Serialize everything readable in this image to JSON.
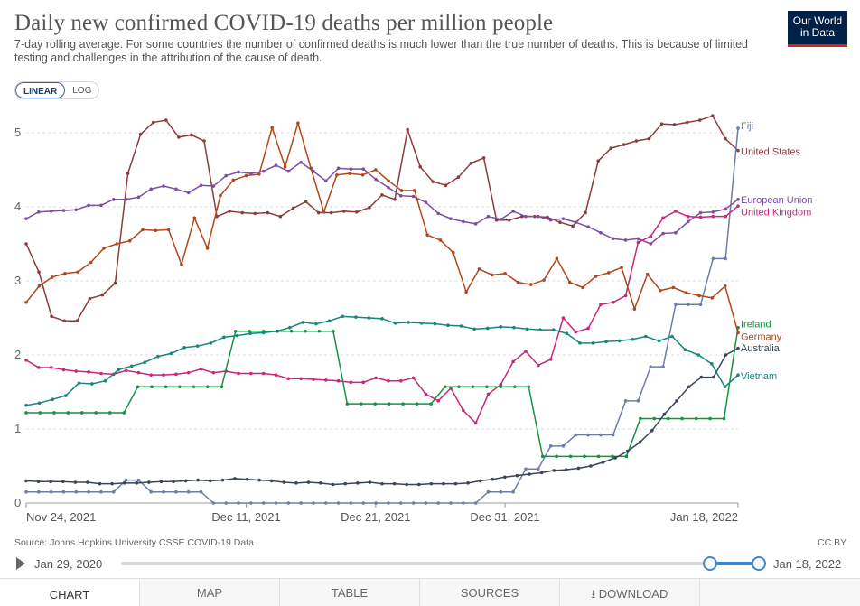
{
  "header": {
    "title": "Daily new confirmed COVID-19 deaths per million people",
    "subtitle": "7-day rolling average. For some countries the number of confirmed deaths is much lower than the true number of deaths. This is because of limited testing and challenges in the attribution of the cause of death.",
    "logo_line1": "Our World",
    "logo_line2": "in Data"
  },
  "scale_toggle": {
    "linear_label": "LINEAR",
    "log_label": "LOG",
    "selected": "LINEAR"
  },
  "chart_data": {
    "type": "line",
    "x_type": "date",
    "x_range": [
      "2021-11-24",
      "2022-01-18"
    ],
    "x_ticks": [
      {
        "date": "2021-11-24",
        "label": "Nov 24, 2021"
      },
      {
        "date": "2021-12-11",
        "label": "Dec 11, 2021"
      },
      {
        "date": "2021-12-21",
        "label": "Dec 21, 2021"
      },
      {
        "date": "2021-12-31",
        "label": "Dec 31, 2021"
      },
      {
        "date": "2022-01-18",
        "label": "Jan 18, 2022"
      }
    ],
    "ylim": [
      0,
      5
    ],
    "y_ticks": [
      0,
      1,
      2,
      3,
      4,
      5
    ],
    "grid": "horizontal dashed",
    "legend": "right, inline labels",
    "start_date": "2021-11-24",
    "series": [
      {
        "name": "United States",
        "color": "#8c3b3b",
        "values": [
          3.5,
          3.12,
          2.52,
          2.46,
          2.46,
          2.76,
          2.81,
          2.97,
          4.45,
          4.98,
          5.14,
          5.17,
          4.94,
          4.97,
          4.89,
          3.87,
          3.94,
          3.92,
          3.91,
          3.92,
          3.87,
          3.98,
          4.07,
          3.92,
          3.92,
          3.94,
          3.93,
          3.99,
          4.16,
          4.1,
          5.04,
          4.54,
          4.34,
          4.29,
          4.4,
          4.59,
          4.66,
          3.82,
          3.82,
          3.87,
          3.87,
          3.86,
          3.79,
          3.74,
          3.92,
          4.62,
          4.79,
          4.84,
          4.89,
          4.92,
          5.12,
          5.11,
          5.14,
          5.17,
          5.23,
          4.92,
          4.76
        ]
      },
      {
        "name": "Fiji",
        "color": "#6d7ea6",
        "values": [
          0.15,
          0.15,
          0.15,
          0.15,
          0.15,
          0.15,
          0.15,
          0.15,
          0.31,
          0.31,
          0.15,
          0.15,
          0.15,
          0.15,
          0.15,
          0,
          0,
          0,
          0,
          0,
          0,
          0,
          0,
          0,
          0,
          0,
          0,
          0,
          0,
          0,
          0,
          0,
          0,
          0,
          0,
          0,
          0,
          0.15,
          0.15,
          0.15,
          0.46,
          0.46,
          0.77,
          0.77,
          0.92,
          0.92,
          0.92,
          0.92,
          1.38,
          1.38,
          1.84,
          1.84,
          2.68,
          2.68,
          2.68,
          3.3,
          3.3,
          5.06
        ]
      },
      {
        "name": "European Union",
        "color": "#7b4ea3",
        "values": [
          3.84,
          3.93,
          3.94,
          3.95,
          3.96,
          4.02,
          4.02,
          4.1,
          4.1,
          4.13,
          4.24,
          4.28,
          4.24,
          4.19,
          4.29,
          4.28,
          4.42,
          4.47,
          4.45,
          4.48,
          4.56,
          4.48,
          4.6,
          4.48,
          4.35,
          4.52,
          4.51,
          4.51,
          4.37,
          4.26,
          4.15,
          4.14,
          4.06,
          3.91,
          3.84,
          3.8,
          3.77,
          3.87,
          3.83,
          3.94,
          3.87,
          3.87,
          3.82,
          3.84,
          3.79,
          3.73,
          3.65,
          3.57,
          3.55,
          3.57,
          3.5,
          3.64,
          3.65,
          3.8,
          3.92,
          3.93,
          3.97,
          4.1
        ]
      },
      {
        "name": "United Kingdom",
        "color": "#c7287a",
        "values": [
          1.93,
          1.83,
          1.83,
          1.8,
          1.78,
          1.77,
          1.75,
          1.74,
          1.79,
          1.76,
          1.73,
          1.73,
          1.74,
          1.76,
          1.81,
          1.76,
          1.78,
          1.75,
          1.75,
          1.75,
          1.73,
          1.68,
          1.68,
          1.67,
          1.66,
          1.65,
          1.63,
          1.63,
          1.69,
          1.65,
          1.65,
          1.69,
          1.47,
          1.38,
          1.55,
          1.25,
          1.08,
          1.47,
          1.6,
          1.91,
          2.05,
          1.86,
          1.94,
          2.5,
          2.31,
          2.36,
          2.68,
          2.71,
          2.8,
          3.52,
          3.6,
          3.85,
          3.94,
          3.87,
          3.86,
          3.87,
          3.87,
          4.01
        ]
      },
      {
        "name": "Ireland",
        "color": "#199143",
        "values": [
          1.22,
          1.22,
          1.22,
          1.22,
          1.22,
          1.22,
          1.22,
          1.22,
          1.57,
          1.57,
          1.57,
          1.57,
          1.57,
          1.57,
          1.57,
          2.32,
          2.32,
          2.32,
          2.32,
          2.32,
          2.32,
          2.32,
          2.32,
          1.34,
          1.34,
          1.34,
          1.34,
          1.34,
          1.34,
          1.34,
          1.57,
          1.57,
          1.57,
          1.57,
          1.57,
          1.57,
          1.57,
          0.63,
          0.63,
          0.63,
          0.63,
          0.63,
          0.63,
          0.63,
          1.14,
          1.14,
          1.14,
          1.14,
          1.14,
          1.14,
          1.14,
          2.37
        ]
      },
      {
        "name": "Germany",
        "color": "#b3471c",
        "values": [
          2.71,
          2.93,
          3.05,
          3.1,
          3.12,
          3.25,
          3.44,
          3.5,
          3.54,
          3.69,
          3.68,
          3.69,
          3.22,
          3.85,
          3.44,
          4.15,
          4.36,
          4.42,
          4.44,
          5.07,
          4.54,
          5.13,
          4.52,
          3.93,
          4.43,
          4.45,
          4.43,
          4.5,
          4.35,
          4.22,
          4.22,
          3.62,
          3.55,
          3.38,
          2.85,
          3.16,
          3.08,
          3.1,
          2.98,
          2.95,
          3.01,
          3.3,
          2.98,
          2.91,
          3.06,
          3.11,
          3.18,
          2.62,
          3.09,
          2.87,
          2.91,
          2.84,
          2.8,
          2.77,
          2.93,
          2.3
        ]
      },
      {
        "name": "Australia",
        "color": "#3a4558",
        "values": [
          0.3,
          0.29,
          0.29,
          0.29,
          0.28,
          0.28,
          0.26,
          0.26,
          0.27,
          0.27,
          0.28,
          0.29,
          0.29,
          0.3,
          0.31,
          0.3,
          0.31,
          0.33,
          0.32,
          0.31,
          0.3,
          0.28,
          0.27,
          0.28,
          0.27,
          0.25,
          0.26,
          0.27,
          0.28,
          0.26,
          0.26,
          0.25,
          0.25,
          0.26,
          0.26,
          0.26,
          0.27,
          0.3,
          0.32,
          0.35,
          0.37,
          0.39,
          0.41,
          0.44,
          0.45,
          0.47,
          0.5,
          0.55,
          0.61,
          0.7,
          0.82,
          0.98,
          1.2,
          1.38,
          1.57,
          1.7,
          1.7,
          2.0,
          2.09
        ]
      },
      {
        "name": "Vietnam",
        "color": "#17867b",
        "values": [
          1.32,
          1.35,
          1.4,
          1.45,
          1.62,
          1.61,
          1.65,
          1.8,
          1.85,
          1.9,
          1.98,
          2.02,
          2.1,
          2.12,
          2.16,
          2.24,
          2.26,
          2.29,
          2.3,
          2.32,
          2.37,
          2.44,
          2.42,
          2.46,
          2.52,
          2.51,
          2.5,
          2.49,
          2.43,
          2.44,
          2.43,
          2.42,
          2.4,
          2.39,
          2.35,
          2.36,
          2.38,
          2.37,
          2.35,
          2.34,
          2.34,
          2.29,
          2.16,
          2.16,
          2.18,
          2.19,
          2.21,
          2.25,
          2.19,
          2.25,
          2.07,
          2.0,
          1.88,
          1.57,
          1.73
        ]
      }
    ]
  },
  "series_labels": [
    "Fiji",
    "United States",
    "European Union",
    "United Kingdom",
    "Ireland",
    "Germany",
    "Australia",
    "Vietnam"
  ],
  "source": "Source: Johns Hopkins University CSSE COVID-19 Data",
  "license": "CC BY",
  "timeline": {
    "start_label": "Jan 29, 2020",
    "end_label": "Jan 18, 2022"
  },
  "tabs": [
    {
      "label": "CHART",
      "active": true
    },
    {
      "label": "MAP",
      "active": false
    },
    {
      "label": "TABLE",
      "active": false
    },
    {
      "label": "SOURCES",
      "active": false
    },
    {
      "label": "DOWNLOAD",
      "active": false
    }
  ],
  "icons": {
    "play": "play-icon",
    "download": "download-icon",
    "share": "share-icon"
  }
}
